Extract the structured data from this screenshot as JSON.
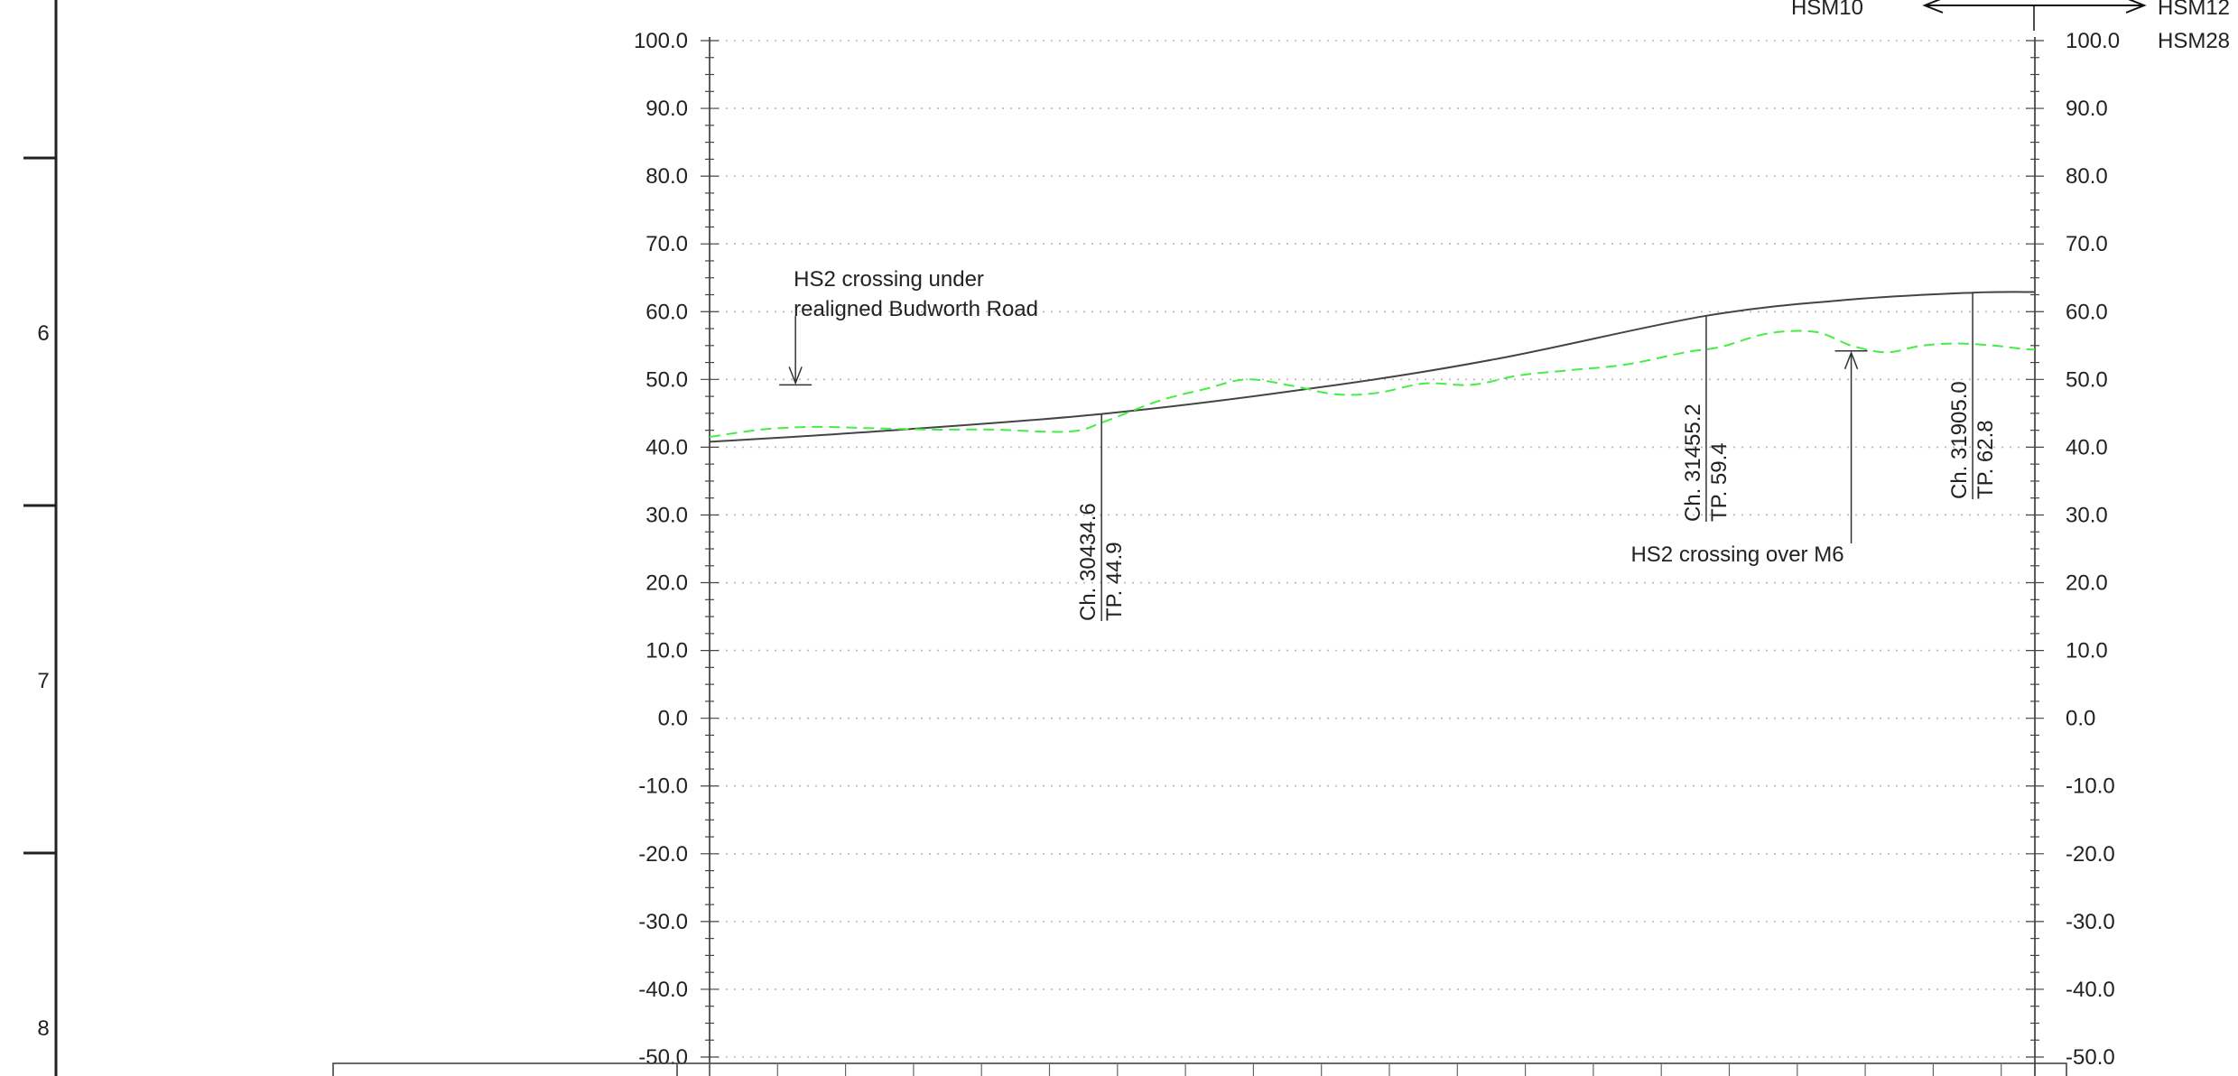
{
  "sheet": {
    "row_labels": [
      "6",
      "7",
      "8"
    ]
  },
  "chart_data": {
    "type": "line",
    "ylim": [
      -50,
      100
    ],
    "y_tick_labels": [
      "100.0",
      "90.0",
      "80.0",
      "70.0",
      "60.0",
      "50.0",
      "40.0",
      "30.0",
      "20.0",
      "10.0",
      "0.0",
      "-10.0",
      "-20.0",
      "-30.0",
      "-40.0",
      "-50.0"
    ],
    "xlim": [
      29773,
      32010
    ],
    "series": [
      {
        "role": "proposed-track-profile",
        "color": "#444444",
        "style": "solid",
        "x": [
          29773,
          30050,
          30434.6,
          30800,
          31100,
          31455.2,
          31700,
          31905.0,
          32010
        ],
        "y": [
          40.8,
          42.3,
          44.9,
          48.8,
          53.0,
          59.4,
          61.8,
          62.8,
          62.9
        ]
      },
      {
        "role": "existing-ground-level",
        "color": "#44ee44",
        "style": "dashed",
        "x": [
          29773,
          29860,
          29950,
          30050,
          30150,
          30250,
          30380,
          30440,
          30530,
          30610,
          30680,
          30760,
          30830,
          30900,
          30980,
          31060,
          31140,
          31230,
          31320,
          31420,
          31480,
          31560,
          31640,
          31700,
          31760,
          31820,
          31880,
          31940,
          31990,
          32010
        ],
        "y": [
          41.5,
          42.6,
          43.0,
          42.8,
          42.6,
          42.6,
          42.3,
          43.8,
          46.8,
          48.6,
          50.0,
          49.0,
          47.8,
          48.0,
          49.4,
          49.2,
          50.6,
          51.4,
          52.2,
          54.0,
          54.8,
          56.8,
          57.0,
          55.0,
          54.0,
          55.0,
          55.3,
          55.0,
          54.5,
          54.4
        ]
      }
    ],
    "chainage_markers": [
      {
        "x": 30434.6,
        "chainage": "Ch. 30434.6",
        "level": "TP. 44.9"
      },
      {
        "x": 31455.2,
        "chainage": "Ch. 31455.2",
        "level": "TP. 59.4"
      },
      {
        "x": 31905.0,
        "chainage": "Ch. 31905.0",
        "level": "TP. 62.8"
      }
    ],
    "annotations": [
      {
        "x": 29918,
        "y": 49.2,
        "line1": "HS2 crossing under",
        "line2": "realigned Budworth Road"
      },
      {
        "x": 31700,
        "y": 54.2,
        "text": "HS2 crossing over M6"
      }
    ],
    "section_labels": {
      "left": "HSM10",
      "right": "HSM12",
      "right_below": "HSM28"
    }
  }
}
